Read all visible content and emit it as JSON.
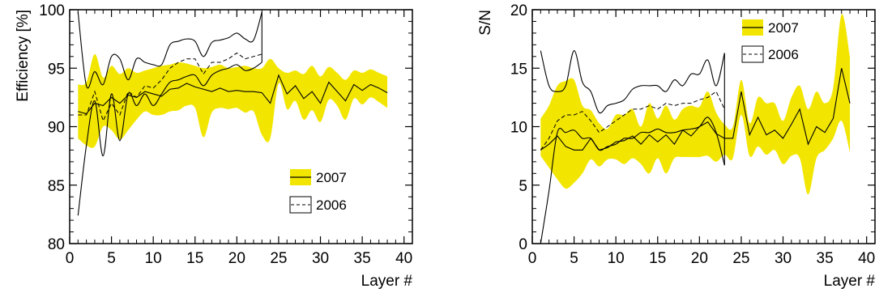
{
  "chart_data": [
    {
      "type": "line",
      "xlabel": "Layer #",
      "ylabel": "Efficiency [%]",
      "xlim": [
        0,
        41
      ],
      "ylim": [
        80,
        100
      ],
      "xticks": [
        0,
        5,
        10,
        15,
        20,
        25,
        30,
        35,
        40
      ],
      "yticks": [
        80,
        85,
        90,
        95,
        100
      ],
      "grid": false,
      "legend_position": "bottom-right",
      "legend": [
        {
          "label": "2007",
          "style": "yellow band with solid line"
        },
        {
          "label": "2006",
          "style": "solid envelope with dashed line"
        }
      ],
      "colors": {
        "band_2007": "#f2e600",
        "line": "#000000"
      },
      "series": [
        {
          "name": "2007",
          "x": [
            1,
            2,
            3,
            4,
            5,
            6,
            7,
            8,
            9,
            10,
            11,
            12,
            13,
            14,
            15,
            16,
            17,
            18,
            19,
            20,
            21,
            22,
            23,
            24,
            25,
            26,
            27,
            28,
            29,
            30,
            31,
            32,
            33,
            34,
            35,
            36,
            37,
            38
          ],
          "values": [
            91.3,
            91.1,
            92.0,
            91.8,
            92.5,
            92.0,
            92.7,
            92.5,
            93.0,
            92.8,
            92.6,
            93.2,
            93.3,
            93.7,
            93.4,
            93.2,
            93.0,
            93.3,
            93.0,
            93.1,
            93.0,
            93.0,
            92.9,
            92.0,
            94.4,
            92.8,
            93.5,
            92.4,
            93.0,
            92.0,
            93.8,
            93.0,
            92.2,
            93.6,
            93.1,
            93.6,
            93.3,
            92.9
          ],
          "band_upper": [
            93.6,
            93.8,
            96.2,
            94.2,
            95.2,
            94.5,
            95.0,
            94.6,
            94.8,
            95.0,
            95.2,
            95.3,
            95.5,
            95.4,
            95.2,
            95.0,
            95.1,
            95.3,
            95.0,
            95.1,
            95.2,
            95.0,
            95.0,
            95.8,
            95.0,
            94.6,
            94.8,
            94.5,
            95.2,
            94.3,
            95.1,
            94.6,
            94.0,
            94.8,
            94.6,
            94.9,
            94.6,
            94.3
          ],
          "band_lower": [
            89.0,
            88.4,
            88.3,
            90.0,
            89.7,
            88.9,
            89.7,
            90.6,
            91.3,
            91.0,
            91.0,
            91.3,
            91.4,
            91.8,
            91.6,
            89.1,
            91.2,
            91.6,
            91.5,
            91.6,
            91.2,
            91.3,
            89.3,
            89.0,
            93.7,
            91.5,
            92.2,
            90.6,
            91.4,
            90.4,
            92.3,
            91.8,
            90.6,
            92.4,
            91.9,
            92.5,
            92.1,
            91.6
          ]
        },
        {
          "name": "2006",
          "x": [
            1,
            2,
            3,
            4,
            5,
            6,
            7,
            8,
            9,
            10,
            11,
            12,
            13,
            14,
            15,
            16,
            17,
            18,
            19,
            20,
            21,
            22,
            23
          ],
          "values": [
            91.0,
            91.0,
            93.0,
            90.5,
            92.0,
            91.0,
            93.0,
            92.5,
            93.5,
            93.3,
            94.0,
            95.0,
            95.5,
            95.8,
            95.8,
            94.5,
            95.5,
            95.5,
            95.8,
            96.3,
            95.8,
            96.0,
            96.2
          ],
          "band_upper": [
            99.8,
            93.5,
            94.7,
            93.6,
            96.0,
            95.8,
            94.0,
            95.8,
            95.5,
            95.3,
            95.3,
            97.0,
            97.3,
            97.5,
            97.3,
            96.0,
            97.2,
            97.4,
            97.6,
            98.0,
            97.5,
            97.4,
            99.8
          ],
          "band_lower": [
            82.4,
            88.4,
            92.2,
            87.5,
            92.8,
            88.8,
            92.8,
            91.8,
            92.8,
            91.8,
            92.8,
            93.8,
            94.0,
            94.3,
            94.4,
            93.5,
            94.4,
            94.8,
            95.0,
            95.3,
            94.8,
            95.0,
            95.5
          ]
        }
      ]
    },
    {
      "type": "line",
      "xlabel": "Layer #",
      "ylabel": "S/N",
      "xlim": [
        0,
        41
      ],
      "ylim": [
        0,
        20
      ],
      "xticks": [
        0,
        5,
        10,
        15,
        20,
        25,
        30,
        35,
        40
      ],
      "yticks": [
        0,
        5,
        10,
        15,
        20
      ],
      "grid": false,
      "legend_position": "top",
      "legend": [
        {
          "label": "2007",
          "style": "yellow band with solid line"
        },
        {
          "label": "2006",
          "style": "solid envelope with dashed line"
        }
      ],
      "colors": {
        "band_2007": "#f2e600",
        "line": "#000000"
      },
      "series": [
        {
          "name": "2007",
          "x": [
            1,
            2,
            3,
            4,
            5,
            6,
            7,
            8,
            9,
            10,
            11,
            12,
            13,
            14,
            15,
            16,
            17,
            18,
            19,
            20,
            21,
            22,
            23,
            24,
            25,
            26,
            27,
            28,
            29,
            30,
            31,
            32,
            33,
            34,
            35,
            36,
            37,
            38
          ],
          "values": [
            8.0,
            8.5,
            9.2,
            8.3,
            8.0,
            8.0,
            9.0,
            8.0,
            8.2,
            8.7,
            8.8,
            9.2,
            8.5,
            9.3,
            8.7,
            9.3,
            8.5,
            9.7,
            9.2,
            10.0,
            10.4,
            9.4,
            9.0,
            9.0,
            13.0,
            9.3,
            10.8,
            9.3,
            9.7,
            9.0,
            10.2,
            11.5,
            8.5,
            10.0,
            9.5,
            10.7,
            15.0,
            12.0
          ],
          "band_upper": [
            10.7,
            11.8,
            13.5,
            13.9,
            14.0,
            11.8,
            11.4,
            10.3,
            9.8,
            11.0,
            11.0,
            11.5,
            10.0,
            12.0,
            10.7,
            11.8,
            10.6,
            11.5,
            11.8,
            11.7,
            13.0,
            11.2,
            10.2,
            10.0,
            14.0,
            10.3,
            12.5,
            12.0,
            12.0,
            10.5,
            12.5,
            13.5,
            11.5,
            13.0,
            12.0,
            13.3,
            19.6,
            16.0
          ],
          "band_lower": [
            7.5,
            6.5,
            5.5,
            4.7,
            5.2,
            6.0,
            7.2,
            6.6,
            7.2,
            7.2,
            6.8,
            7.3,
            6.8,
            6.0,
            7.3,
            6.0,
            7.3,
            7.4,
            7.4,
            7.4,
            7.5,
            7.0,
            7.6,
            7.3,
            11.0,
            7.5,
            8.3,
            7.6,
            8.0,
            6.8,
            7.5,
            7.3,
            4.2,
            7.3,
            8.0,
            9.0,
            10.5,
            7.8
          ]
        },
        {
          "name": "2006",
          "x": [
            1,
            2,
            3,
            4,
            5,
            6,
            7,
            8,
            9,
            10,
            11,
            12,
            13,
            14,
            15,
            16,
            17,
            18,
            19,
            20,
            21,
            22,
            23
          ],
          "values": [
            8.0,
            9.0,
            10.5,
            11.0,
            11.0,
            11.3,
            10.5,
            9.5,
            10.0,
            10.5,
            11.0,
            11.5,
            11.5,
            11.8,
            11.5,
            12.0,
            11.8,
            12.0,
            12.0,
            12.3,
            12.5,
            13.0,
            11.5
          ],
          "band_upper": [
            16.5,
            13.5,
            13.0,
            13.5,
            16.5,
            13.8,
            13.0,
            11.2,
            11.8,
            12.0,
            12.3,
            13.2,
            13.5,
            13.5,
            13.5,
            13.0,
            14.0,
            13.5,
            14.5,
            14.5,
            15.7,
            13.5,
            16.3
          ],
          "band_lower": [
            0.0,
            4.5,
            9.5,
            9.5,
            9.7,
            9.0,
            9.0,
            8.0,
            8.3,
            8.5,
            9.0,
            9.0,
            9.5,
            9.5,
            9.8,
            9.5,
            9.5,
            9.7,
            9.8,
            10.0,
            10.8,
            9.5,
            6.7
          ]
        }
      ]
    }
  ]
}
